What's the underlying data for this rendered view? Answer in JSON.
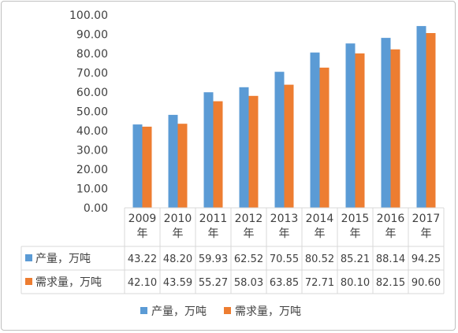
{
  "chart_data": {
    "type": "bar",
    "categories": [
      "2009年",
      "2010年",
      "2011年",
      "2012年",
      "2013年",
      "2014年",
      "2015年",
      "2016年",
      "2017年"
    ],
    "series": [
      {
        "name": "产量，万吨",
        "color": "#5b9bd5",
        "values": [
          43.22,
          48.2,
          59.93,
          62.52,
          70.55,
          80.52,
          85.21,
          88.14,
          94.25
        ],
        "labels": [
          "43.22",
          "48.20",
          "59.93",
          "62.52",
          "70.55",
          "80.52",
          "85.21",
          "88.14",
          "94.25"
        ]
      },
      {
        "name": "需求量，万吨",
        "color": "#ed7d31",
        "values": [
          42.1,
          43.59,
          55.27,
          58.03,
          63.85,
          72.71,
          80.1,
          82.15,
          90.6
        ],
        "labels": [
          "42.10",
          "43.59",
          "55.27",
          "58.03",
          "63.85",
          "72.71",
          "80.10",
          "82.15",
          "90.60"
        ]
      }
    ],
    "ylim": [
      0,
      100
    ],
    "yticks": [
      "0.00",
      "10.00",
      "20.00",
      "30.00",
      "40.00",
      "50.00",
      "60.00",
      "70.00",
      "80.00",
      "90.00",
      "100.00"
    ],
    "grid": false,
    "data_table": true,
    "legend_position": "bottom"
  }
}
